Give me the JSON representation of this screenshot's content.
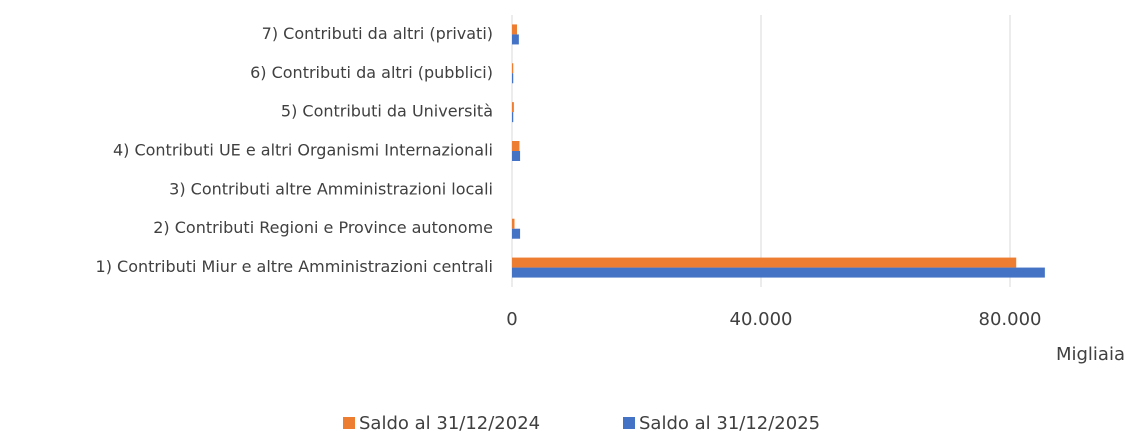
{
  "chart_data": {
    "type": "bar",
    "orientation": "horizontal",
    "categories": [
      "1) Contributi Miur e altre Amministrazioni centrali",
      "2) Contributi Regioni e Province autonome",
      "3) Contributi altre Amministrazioni locali",
      "4) Contributi UE e altri Organismi Internazionali",
      "5) Contributi da Università",
      "6) Contributi da altri (pubblici)",
      "7) Contributi da altri (privati)"
    ],
    "series": [
      {
        "name": "Saldo al 31/12/2024",
        "color": "#ED7D31",
        "values": [
          81000,
          400,
          0,
          1200,
          300,
          200,
          800
        ]
      },
      {
        "name": "Saldo al 31/12/2025",
        "color": "#4472C4",
        "values": [
          85600,
          1300,
          0,
          1300,
          200,
          200,
          1100
        ]
      }
    ],
    "xlabel": "Migliaia",
    "xlim": [
      0,
      90000
    ],
    "xticks": [
      0,
      {
        "value": 40000,
        "label": "40.000"
      },
      {
        "value": 80000,
        "label": "80.000"
      }
    ],
    "grid": true,
    "legend": "bottom"
  }
}
